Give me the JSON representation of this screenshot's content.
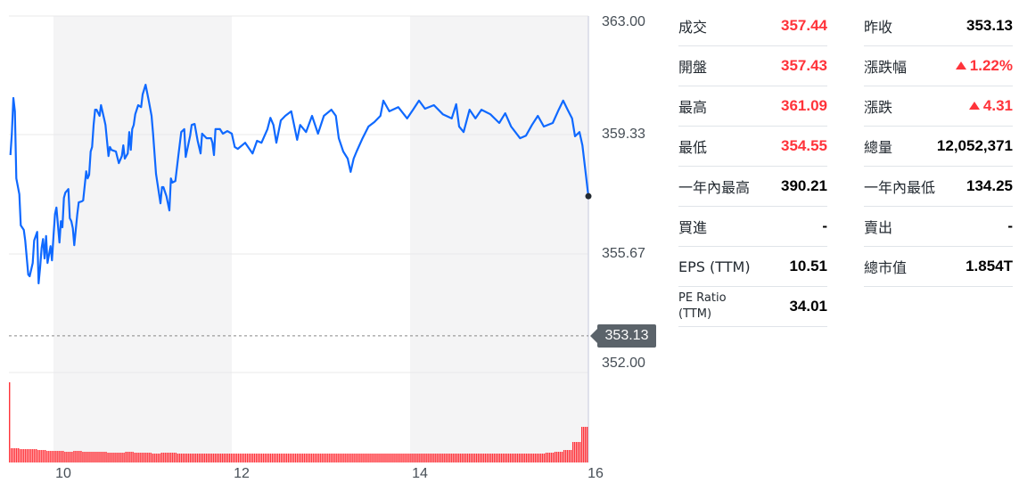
{
  "chart_data": {
    "type": "line",
    "x_ticks": [
      "10",
      "12",
      "14",
      "16"
    ],
    "y_ticks": [
      "363.00",
      "359.33",
      "355.67",
      "352.00"
    ],
    "ylim": [
      352.0,
      363.0
    ],
    "xlim": [
      "9:30",
      "16:00"
    ],
    "shaded_bands": [
      [
        "10:00",
        "12:00"
      ],
      [
        "14:00",
        "16:00"
      ]
    ],
    "grid": true,
    "reference_line": {
      "label": "353.13",
      "value": 353.13
    },
    "colors": {
      "line": "#0f69ff",
      "volume": "#ff333a",
      "band": "#f4f4f5",
      "tag": "#5b636a"
    },
    "series": [
      {
        "values": [
          [
            "9:31",
            358.71
          ],
          [
            "9:32",
            359.37
          ],
          [
            "9:33",
            360.47
          ],
          [
            "9:34",
            360.06
          ],
          [
            "9:35",
            357.99
          ],
          [
            "9:37",
            357.5
          ],
          [
            "9:38",
            356.54
          ],
          [
            "9:40",
            356.4
          ],
          [
            "9:41",
            356.07
          ],
          [
            "9:43",
            355.02
          ],
          [
            "9:44",
            354.97
          ],
          [
            "9:46",
            355.38
          ],
          [
            "9:47",
            356.07
          ],
          [
            "9:49",
            356.34
          ],
          [
            "9:50",
            354.75
          ],
          [
            "9:51",
            355.24
          ],
          [
            "9:52",
            355.85
          ],
          [
            "9:53",
            356.12
          ],
          [
            "9:54",
            355.52
          ],
          [
            "9:55",
            356.21
          ],
          [
            "9:56",
            355.38
          ],
          [
            "9:58",
            355.9
          ],
          [
            "9:59",
            355.46
          ],
          [
            "10:00",
            356.21
          ],
          [
            "10:01",
            356.89
          ],
          [
            "10:02",
            357.09
          ],
          [
            "10:04",
            356.01
          ],
          [
            "10:05",
            356.67
          ],
          [
            "10:06",
            356.48
          ],
          [
            "10:07",
            357.39
          ],
          [
            "10:08",
            357.55
          ],
          [
            "10:10",
            357.66
          ],
          [
            "10:11",
            356.76
          ],
          [
            "10:12",
            356.67
          ],
          [
            "10:13",
            356.45
          ],
          [
            "10:14",
            355.93
          ],
          [
            "10:16",
            356.89
          ],
          [
            "10:17",
            357.25
          ],
          [
            "10:19",
            357.28
          ],
          [
            "10:20",
            357.31
          ],
          [
            "10:22",
            358.21
          ],
          [
            "10:23",
            357.99
          ],
          [
            "10:24",
            358.1
          ],
          [
            "10:25",
            358.82
          ],
          [
            "10:26",
            358.96
          ],
          [
            "10:27",
            359.64
          ],
          [
            "10:28",
            360.11
          ],
          [
            "10:29",
            360.11
          ],
          [
            "10:31",
            359.92
          ],
          [
            "10:32",
            360.25
          ],
          [
            "10:34",
            359.84
          ],
          [
            "10:35",
            359.64
          ],
          [
            "10:37",
            358.68
          ],
          [
            "10:38",
            358.96
          ],
          [
            "10:39",
            358.87
          ],
          [
            "10:42",
            358.82
          ],
          [
            "10:44",
            358.46
          ],
          [
            "10:46",
            358.68
          ],
          [
            "10:47",
            359.01
          ],
          [
            "10:48",
            358.6
          ],
          [
            "10:50",
            358.76
          ],
          [
            "10:51",
            359.42
          ],
          [
            "10:52",
            358.87
          ],
          [
            "10:53",
            359.51
          ],
          [
            "10:54",
            359.64
          ],
          [
            "10:55",
            359.97
          ],
          [
            "10:57",
            360.25
          ],
          [
            "10:59",
            360.19
          ],
          [
            "11:00",
            360.58
          ],
          [
            "11:02",
            360.88
          ],
          [
            "11:04",
            360.41
          ],
          [
            "11:06",
            359.92
          ],
          [
            "11:07",
            359.37
          ],
          [
            "11:09",
            358.13
          ],
          [
            "11:12",
            357.22
          ],
          [
            "11:13",
            357.72
          ],
          [
            "11:14",
            357.72
          ],
          [
            "11:16",
            357.44
          ],
          [
            "11:18",
            357.0
          ],
          [
            "11:19",
            357.99
          ],
          [
            "11:20",
            357.86
          ],
          [
            "11:22",
            357.91
          ],
          [
            "11:24",
            358.68
          ],
          [
            "11:26",
            359.42
          ],
          [
            "11:28",
            359.51
          ],
          [
            "11:29",
            358.65
          ],
          [
            "11:32",
            359.31
          ],
          [
            "11:33",
            359.64
          ],
          [
            "11:35",
            359.67
          ],
          [
            "11:37",
            359.15
          ],
          [
            "11:39",
            358.76
          ],
          [
            "11:40",
            359.37
          ],
          [
            "11:43",
            359.23
          ],
          [
            "11:46",
            359.23
          ],
          [
            "11:47",
            359.09
          ],
          [
            "11:48",
            358.71
          ],
          [
            "11:49",
            359.51
          ],
          [
            "11:52",
            359.51
          ],
          [
            "11:54",
            359.37
          ],
          [
            "11:57",
            359.45
          ],
          [
            "12:00",
            359.37
          ],
          [
            "12:02",
            358.96
          ],
          [
            "12:04",
            358.9
          ],
          [
            "12:09",
            359.09
          ],
          [
            "12:14",
            358.76
          ],
          [
            "12:17",
            359.15
          ],
          [
            "12:20",
            359.09
          ],
          [
            "12:24",
            359.51
          ],
          [
            "12:26",
            359.86
          ],
          [
            "12:28",
            359.64
          ],
          [
            "12:30",
            359.09
          ],
          [
            "12:33",
            359.78
          ],
          [
            "12:36",
            359.92
          ],
          [
            "12:40",
            360.06
          ],
          [
            "12:44",
            359.18
          ],
          [
            "12:46",
            359.64
          ],
          [
            "12:50",
            359.42
          ],
          [
            "12:54",
            359.92
          ],
          [
            "12:58",
            359.37
          ],
          [
            "13:02",
            359.92
          ],
          [
            "13:07",
            360.11
          ],
          [
            "13:10",
            359.92
          ],
          [
            "13:12",
            359.23
          ],
          [
            "13:15",
            358.82
          ],
          [
            "13:18",
            358.6
          ],
          [
            "13:20",
            358.19
          ],
          [
            "13:22",
            358.6
          ],
          [
            "13:24",
            358.82
          ],
          [
            "13:28",
            359.23
          ],
          [
            "13:32",
            359.59
          ],
          [
            "13:36",
            359.73
          ],
          [
            "13:40",
            359.92
          ],
          [
            "13:42",
            360.39
          ],
          [
            "13:46",
            360.06
          ],
          [
            "13:52",
            360.19
          ],
          [
            "13:58",
            359.84
          ],
          [
            "14:02",
            360.11
          ],
          [
            "14:06",
            360.39
          ],
          [
            "14:10",
            360.14
          ],
          [
            "14:16",
            360.25
          ],
          [
            "14:22",
            359.97
          ],
          [
            "14:28",
            359.84
          ],
          [
            "14:31",
            360.28
          ],
          [
            "14:33",
            359.59
          ],
          [
            "14:36",
            359.42
          ],
          [
            "14:40",
            360.11
          ],
          [
            "14:44",
            359.84
          ],
          [
            "14:48",
            360.11
          ],
          [
            "14:54",
            359.97
          ],
          [
            "15:00",
            359.7
          ],
          [
            "15:04",
            360.0
          ],
          [
            "15:08",
            359.59
          ],
          [
            "15:14",
            359.23
          ],
          [
            "15:18",
            359.31
          ],
          [
            "15:22",
            359.64
          ],
          [
            "15:26",
            359.92
          ],
          [
            "15:30",
            359.59
          ],
          [
            "15:36",
            359.7
          ],
          [
            "15:40",
            360.11
          ],
          [
            "15:43",
            360.39
          ],
          [
            "15:46",
            360.11
          ],
          [
            "15:49",
            359.84
          ],
          [
            "15:51",
            359.29
          ],
          [
            "15:54",
            359.42
          ],
          [
            "15:56",
            359.01
          ],
          [
            "16:00",
            357.44
          ]
        ]
      }
    ],
    "volume_relative": {
      "opening": 9.0,
      "values": [
        1.6,
        1.5,
        1.5,
        1.4,
        1.3,
        1.3,
        1.2,
        1.3,
        1.2,
        1.2,
        1.2,
        1.1,
        1.1,
        1.2,
        1.1,
        1.1,
        1.0,
        1.1,
        1.1,
        1.0,
        1.0,
        1.0,
        1.0,
        1.0,
        1.0,
        1.0,
        1.0,
        1.0,
        1.0,
        1.0,
        1.0,
        1.0,
        1.0,
        1.0,
        1.0,
        1.0,
        1.0,
        1.0,
        1.0,
        1.0,
        1.0,
        1.0,
        1.0,
        1.0,
        1.0,
        1.0,
        1.0,
        1.0,
        1.0,
        1.0,
        1.0,
        1.0,
        1.0,
        1.0,
        1.0,
        1.0,
        1.0,
        1.0,
        1.0,
        1.0,
        1.0,
        1.1,
        1.2,
        1.4,
        2.3,
        4.0
      ]
    }
  },
  "quote": {
    "left": [
      {
        "label": "成交",
        "value": "357.44",
        "color": "up"
      },
      {
        "label": "開盤",
        "value": "357.43",
        "color": "up"
      },
      {
        "label": "最高",
        "value": "361.09",
        "color": "up"
      },
      {
        "label": "最低",
        "value": "354.55",
        "color": "up"
      },
      {
        "label": "一年內最高",
        "value": "390.21"
      },
      {
        "label": "買進",
        "value": "-"
      },
      {
        "label": "EPS (TTM)",
        "value": "10.51"
      },
      {
        "label": "PE Ratio (TTM)",
        "value": "34.01"
      }
    ],
    "right": [
      {
        "label": "昨收",
        "value": "353.13"
      },
      {
        "label": "漲跌幅",
        "value": "1.22%",
        "color": "up",
        "arrow": "triangle-up-icon"
      },
      {
        "label": "漲跌",
        "value": "4.31",
        "color": "up",
        "arrow": "triangle-up-icon"
      },
      {
        "label": "總量",
        "value": "12,052,371"
      },
      {
        "label": "一年內最低",
        "value": "134.25"
      },
      {
        "label": "賣出",
        "value": "-"
      },
      {
        "label": "總市值",
        "value": "1.854T"
      }
    ]
  }
}
